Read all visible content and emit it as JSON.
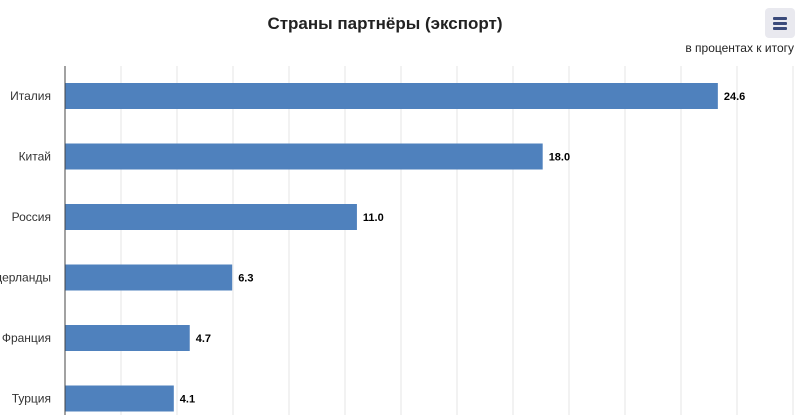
{
  "chart_data": {
    "type": "bar",
    "orientation": "horizontal",
    "title": "Страны партнёры (экспорт)",
    "subtitle": "в процентах к итогу",
    "categories": [
      "Италия",
      "Китай",
      "Россия",
      "Нидерланды",
      "Франция",
      "Турция"
    ],
    "values": [
      24.6,
      18.0,
      11.0,
      6.3,
      4.7,
      4.1
    ],
    "data_labels": [
      "24.6",
      "18.0",
      "11.0",
      "6.3",
      "4.7",
      "4.1"
    ],
    "xlim": [
      0,
      26
    ],
    "grid": true,
    "bar_color": "#4f81bd"
  },
  "toolbar": {
    "menu_icon": "hamburger-menu-icon"
  }
}
